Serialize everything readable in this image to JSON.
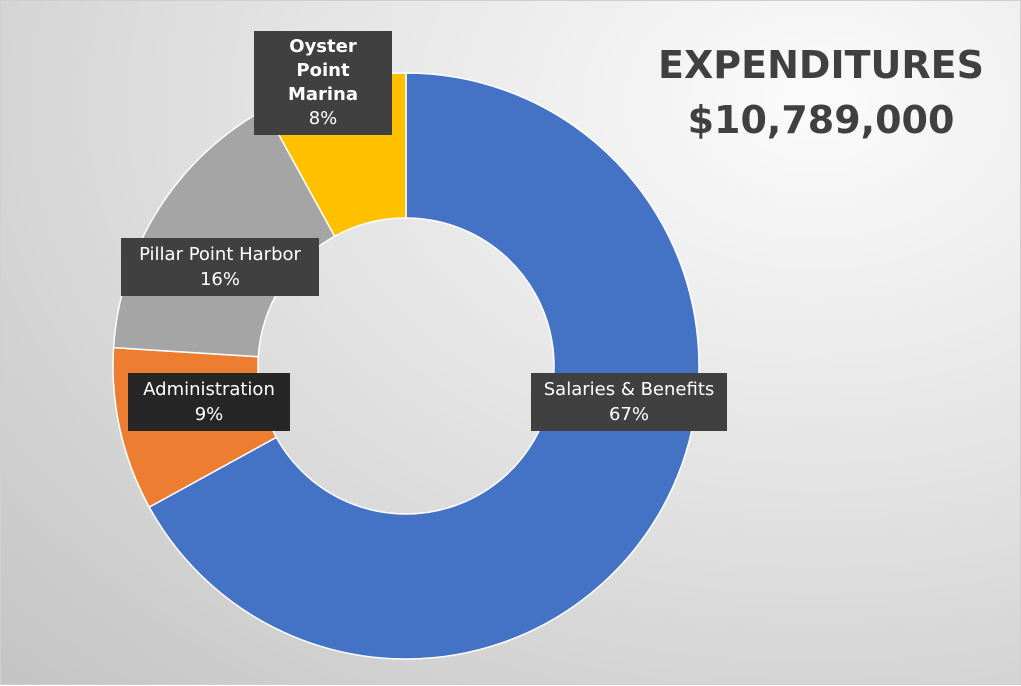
{
  "chart_data": {
    "type": "donut",
    "title": "EXPENDITURES",
    "subtitle": "$10,789,000",
    "categories": [
      "Salaries & Benefits",
      "Administration",
      "Pillar Point Harbor",
      "Oyster Point Marina"
    ],
    "values": [
      67,
      9,
      16,
      8
    ],
    "value_labels": [
      "67%",
      "9%",
      "16%",
      "8%"
    ],
    "colors": [
      "#4472c4",
      "#ed7d31",
      "#a5a5a5",
      "#ffc000"
    ]
  }
}
